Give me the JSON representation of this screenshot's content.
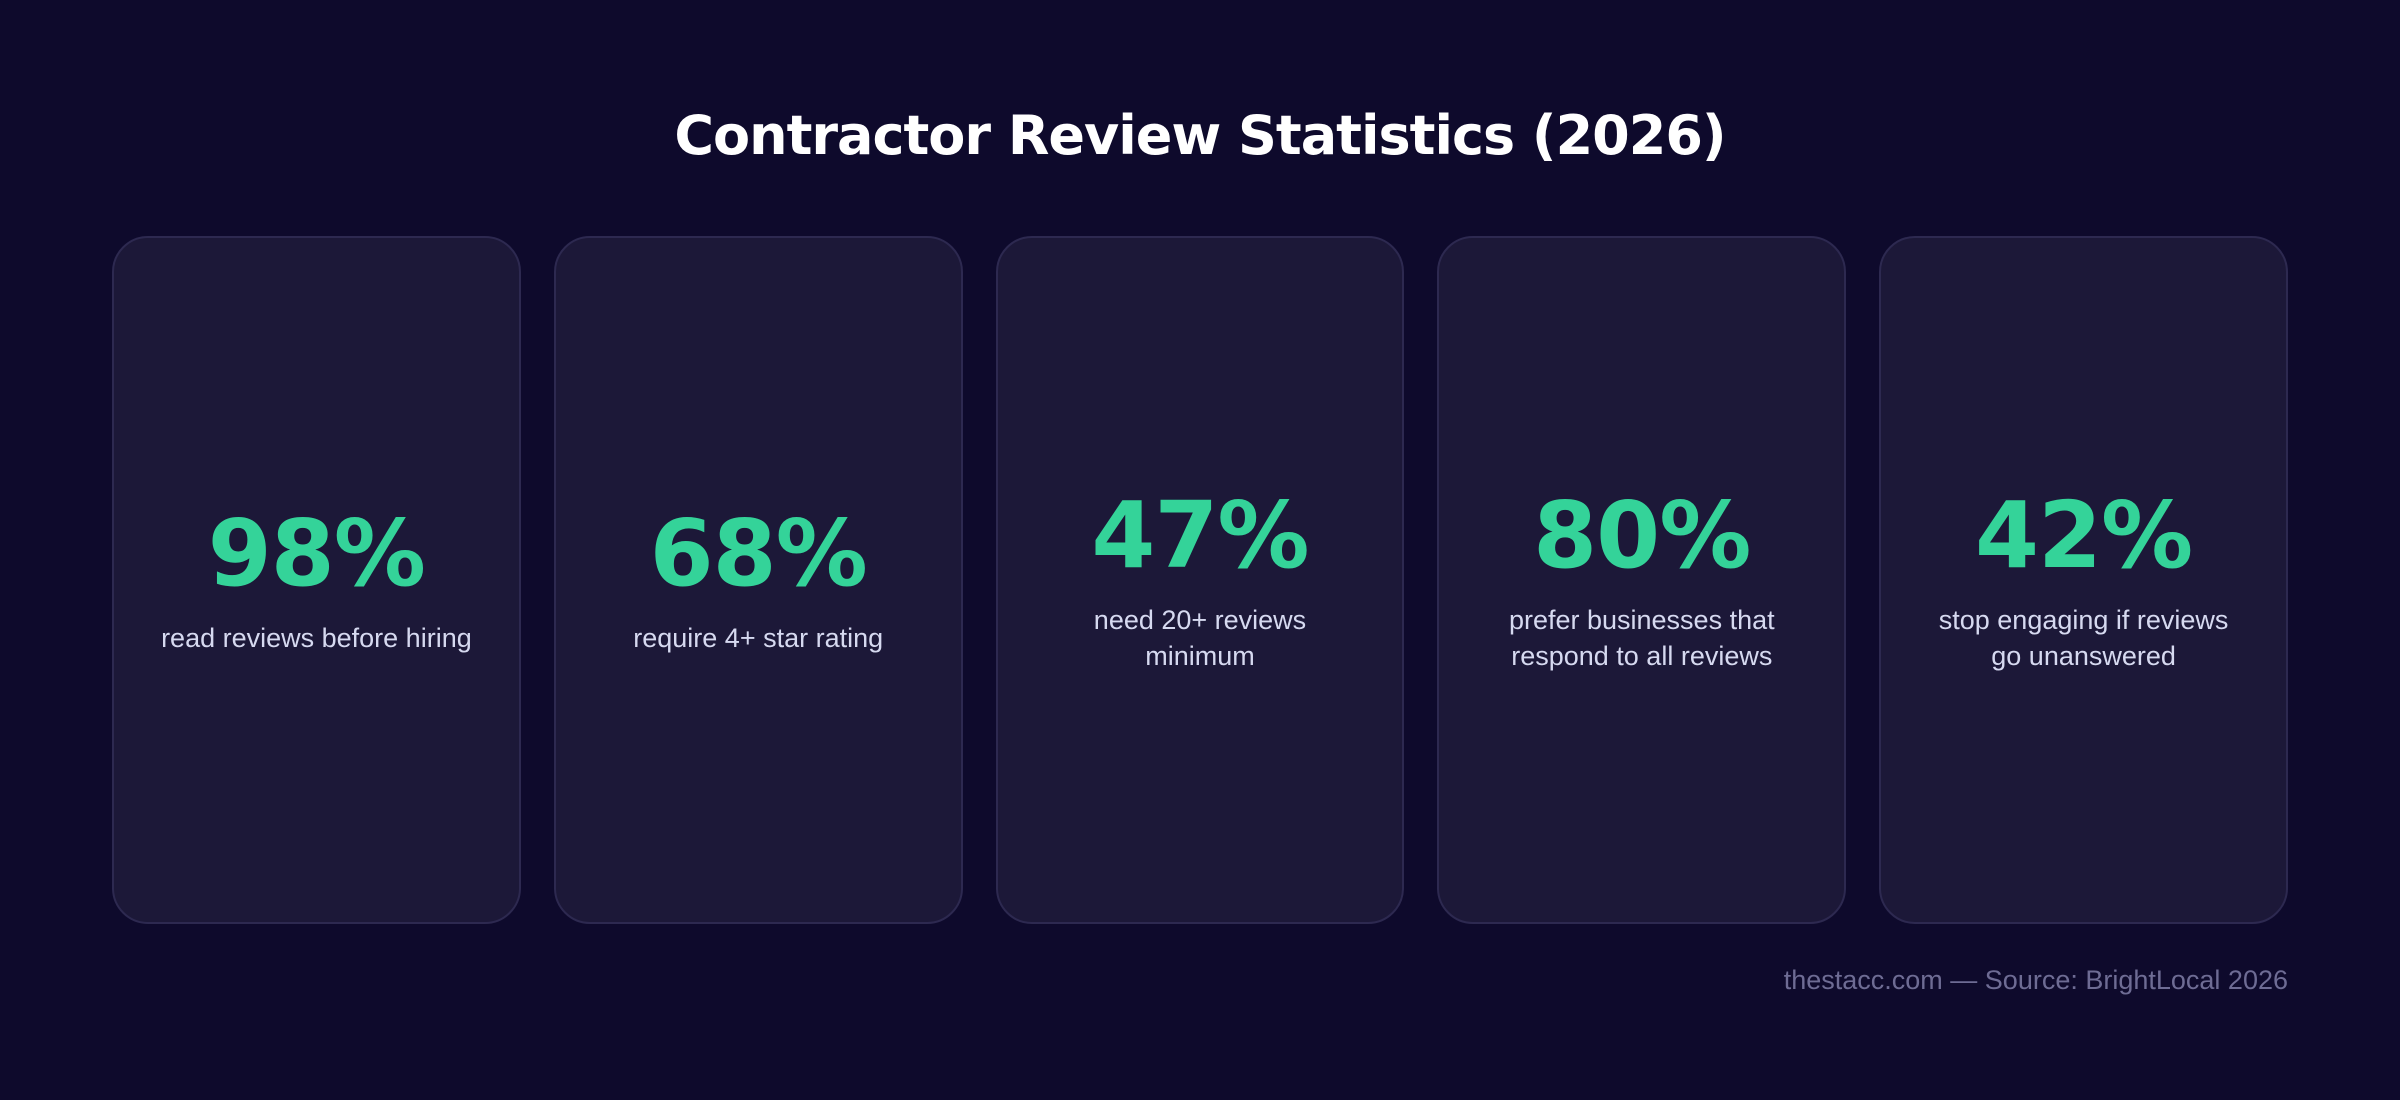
{
  "title": "Contractor Review Statistics (2026)",
  "stats": [
    {
      "value": "98%",
      "label": "read reviews before hiring"
    },
    {
      "value": "68%",
      "label": "require 4+ star rating"
    },
    {
      "value": "47%",
      "label": "need 20+ reviews minimum"
    },
    {
      "value": "80%",
      "label": "prefer businesses that respond to all reviews"
    },
    {
      "value": "42%",
      "label": "stop engaging if reviews go unanswered"
    }
  ],
  "footer": "thestacc.com — Source: BrightLocal 2026",
  "colors": {
    "background": "#0e0a2c",
    "card": "#1c1838",
    "accent": "#34d399",
    "label": "#d6d9f0",
    "footer": "#6e6c94"
  }
}
